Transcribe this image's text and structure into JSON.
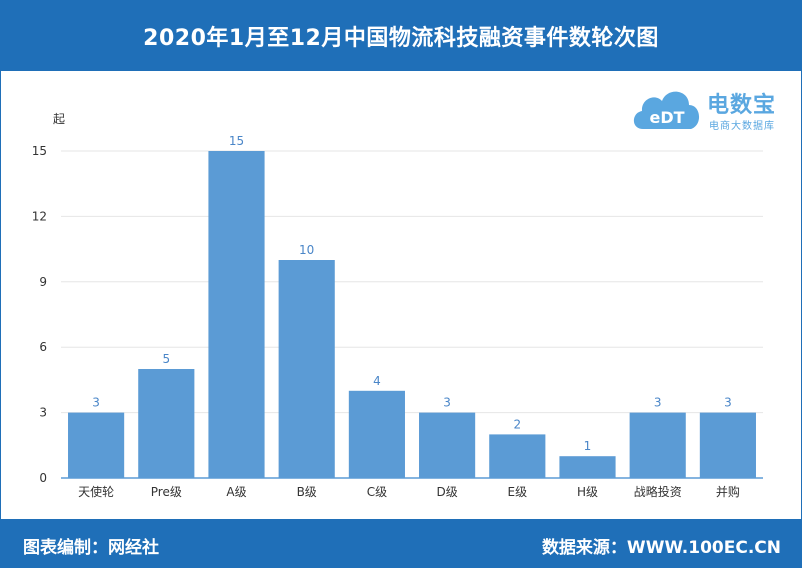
{
  "title": "2020年1月至12月中国物流科技融资事件数轮次图",
  "footer": {
    "left": "图表编制：网经社",
    "right": "数据来源：WWW.100EC.CN"
  },
  "logo": {
    "mark": "eDT",
    "name": "电数宝",
    "subtitle": "电商大数据库"
  },
  "chart_data": {
    "type": "bar",
    "ylabel": "起",
    "xlabel": "",
    "categories": [
      "天使轮",
      "Pre级",
      "A级",
      "B级",
      "C级",
      "D级",
      "E级",
      "H级",
      "战略投资",
      "并购"
    ],
    "values": [
      3,
      5,
      15,
      10,
      4,
      3,
      2,
      1,
      3,
      3
    ],
    "ylim": [
      0,
      15
    ],
    "yticks": [
      0,
      3,
      6,
      9,
      12,
      15
    ],
    "grid": true,
    "legend": "none",
    "bar_color": "#5b9bd5",
    "label_color": "#4a86c8"
  },
  "colors": {
    "header": "#1f6fb8",
    "footer": "#1f6fb8"
  }
}
